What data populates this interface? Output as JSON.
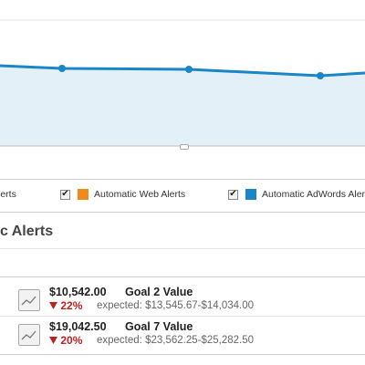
{
  "chart_data": {
    "type": "area",
    "x": [
      0,
      1,
      2,
      3,
      4
    ],
    "values": [
      72,
      75,
      76,
      83,
      80
    ],
    "colors": {
      "line": "#1a86c8",
      "fill": "#e3f0f7",
      "grid": "#e6e6e6"
    }
  },
  "legend": {
    "items": [
      {
        "label": "lerts",
        "checked": false,
        "swatch": null
      },
      {
        "label": "Automatic Web Alerts",
        "checked": true,
        "swatch": "#f08a1c"
      },
      {
        "label": "Automatic AdWords Alerts",
        "checked": true,
        "swatch": "#1a86c8"
      }
    ],
    "check_glyph": "✔"
  },
  "section": {
    "title": "c Alerts"
  },
  "alerts": [
    {
      "amount": "$10,542.00",
      "goal": "Goal 2 Value",
      "change": "22%",
      "expected": "expected: $13,545.67-$14,034.00"
    },
    {
      "amount": "$19,042.50",
      "goal": "Goal 7 Value",
      "change": "20%",
      "expected": "expected: $23,562.25-$25,282.50"
    }
  ],
  "icons": {
    "sparkline": "sparkline-icon",
    "down_arrow": "down-arrow-icon"
  },
  "colors": {
    "negative": "#b22222",
    "text": "#222222",
    "muted": "#666666"
  }
}
